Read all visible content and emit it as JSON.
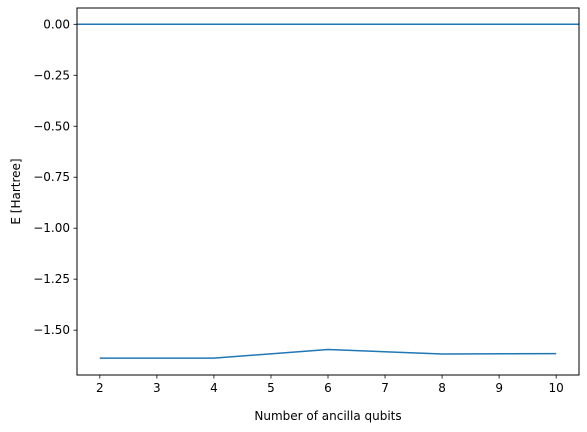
{
  "chart_data": {
    "type": "line",
    "title": "",
    "xlabel": "Number of ancilla qubits",
    "ylabel": "E [Hartree]",
    "xlim": [
      1.6,
      10.4
    ],
    "ylim": [
      -1.72,
      0.08
    ],
    "x_ticks": [
      2,
      3,
      4,
      5,
      6,
      7,
      8,
      9,
      10
    ],
    "x_tick_labels": [
      "2",
      "3",
      "4",
      "5",
      "6",
      "7",
      "8",
      "9",
      "10"
    ],
    "y_ticks": [
      0.0,
      -0.25,
      -0.5,
      -0.75,
      -1.0,
      -1.25,
      -1.5
    ],
    "y_tick_labels": [
      "0.00",
      "−0.25",
      "−0.50",
      "−0.75",
      "−1.00",
      "−1.25",
      "−1.50"
    ],
    "grid": false,
    "hline": {
      "y": 0.0,
      "color": "#1f77b4"
    },
    "series": [
      {
        "color": "#1f77b4",
        "x": [
          2,
          4,
          6,
          8,
          10
        ],
        "y": [
          -1.637,
          -1.637,
          -1.595,
          -1.617,
          -1.615
        ]
      }
    ]
  }
}
